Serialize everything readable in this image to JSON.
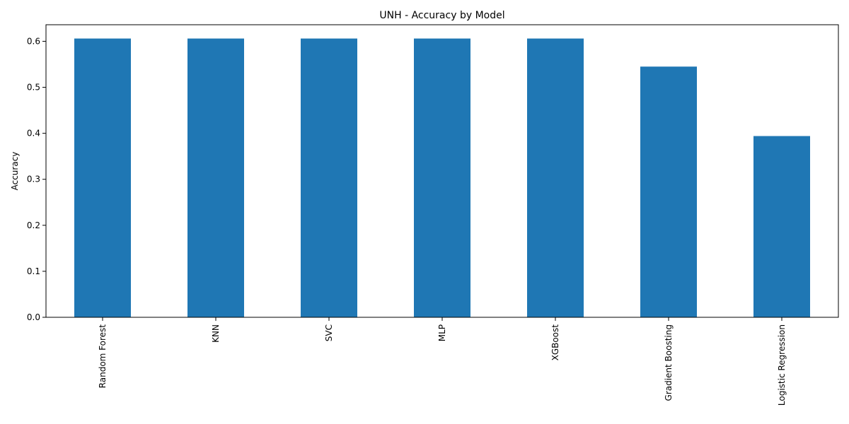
{
  "chart_data": {
    "type": "bar",
    "title": "UNH - Accuracy by Model",
    "xlabel": "",
    "ylabel": "Accuracy",
    "categories": [
      "Random Forest",
      "KNN",
      "SVC",
      "MLP",
      "XGBoost",
      "Gradient Boosting",
      "Logistic Regression"
    ],
    "values": [
      0.606,
      0.606,
      0.606,
      0.606,
      0.606,
      0.545,
      0.394
    ],
    "ylim": [
      0,
      0.636
    ],
    "yticks": [
      "0.0",
      "0.1",
      "0.2",
      "0.3",
      "0.4",
      "0.5",
      "0.6"
    ],
    "grid": false,
    "legend": "none",
    "bar_color": "#1f77b4"
  }
}
